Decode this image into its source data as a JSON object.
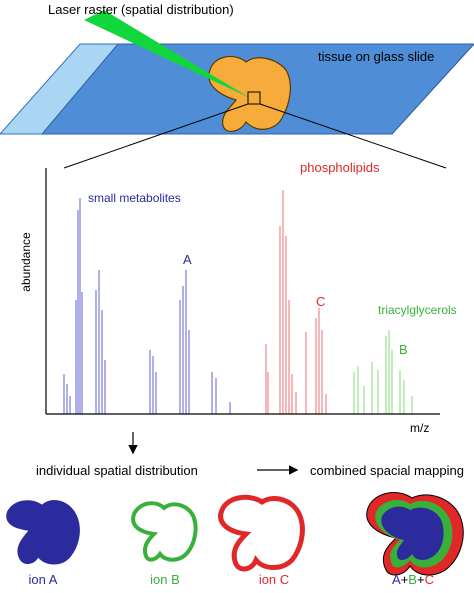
{
  "header": {
    "laser_label": "Laser raster (spatial distribution)",
    "slide_label": "tissue on glass slide"
  },
  "spectrum": {
    "y_axis_label": "abundance",
    "x_axis_label": "m/z",
    "groups": {
      "small_metabolites": "small metabolites",
      "phospholipids": "phospholipids",
      "triacylglycerols": "triacylglycerols"
    },
    "peak_labels": {
      "a": "A",
      "b": "B",
      "c": "C"
    }
  },
  "mapping": {
    "individual_label": "individual spatial distribution",
    "combined_label": "combined spacial mapping",
    "ions": {
      "a": "ion A",
      "b": "ion B",
      "c": "ion C"
    },
    "combined": {
      "a": "A",
      "plus1": "+",
      "b": "B",
      "plus2": "+",
      "c": "C"
    }
  },
  "colors": {
    "slide_light": "#a9d6f2",
    "slide_dark": "#4f8ed6",
    "tissue": "#f6ab3a",
    "laser": "#11d63c",
    "blue": "#2b2b9e",
    "red": "#e02828",
    "green": "#38b03a",
    "peak_blue": "#8f8fe0",
    "peak_red": "#f29a9a",
    "peak_green": "#a9e6a0"
  }
}
